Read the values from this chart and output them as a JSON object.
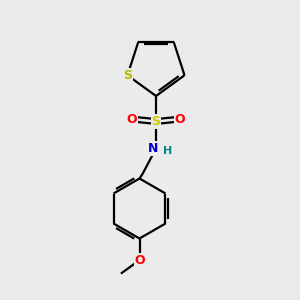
{
  "bg_color": "#ebebeb",
  "bond_color": "#000000",
  "S_thiophene_color": "#b8b800",
  "S_sulfonyl_color": "#cccc00",
  "O_color": "#ff0000",
  "N_color": "#0000cc",
  "H_color": "#008888",
  "line_width": 1.6,
  "figsize": [
    3.0,
    3.0
  ],
  "dpi": 100,
  "xlim": [
    0,
    10
  ],
  "ylim": [
    0,
    10
  ]
}
